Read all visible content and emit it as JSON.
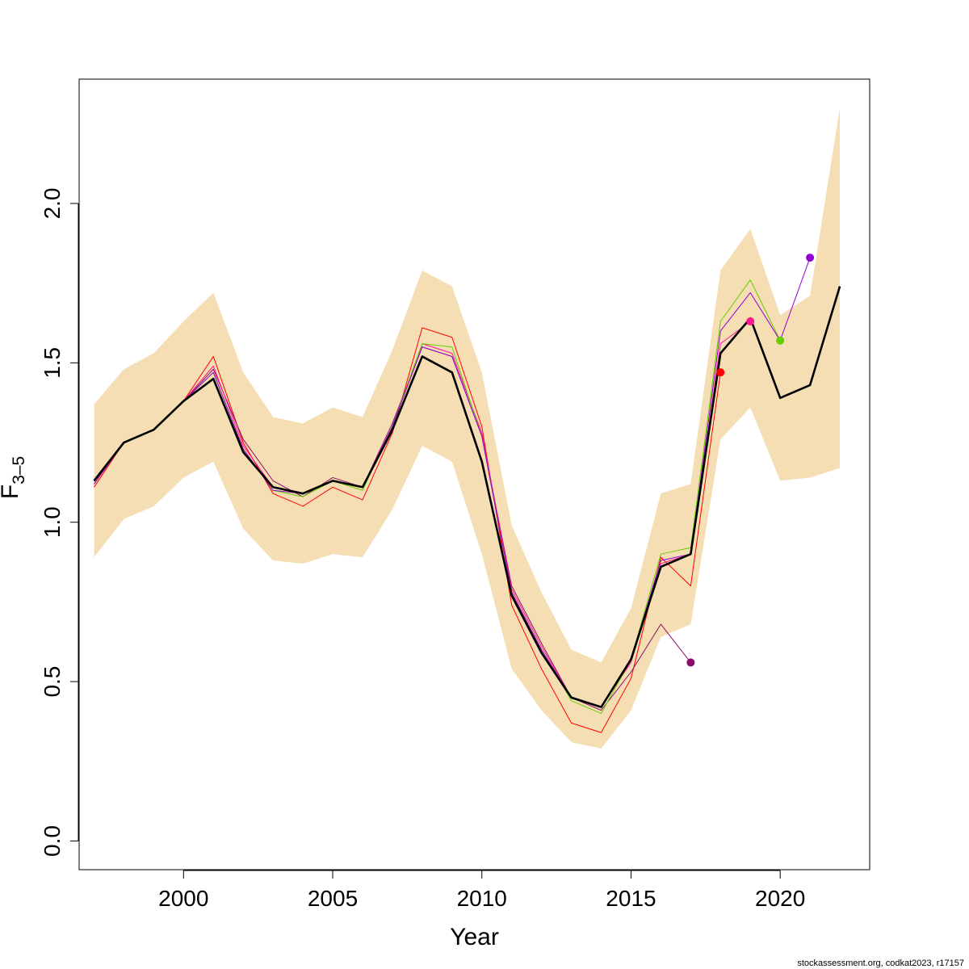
{
  "chart_data": {
    "type": "line",
    "title": "",
    "xlabel": "Year",
    "ylabel_main": "F",
    "ylabel_sub": "3–5",
    "xlim": [
      1996.5,
      2023.0
    ],
    "ylim": [
      -0.09,
      2.39
    ],
    "x_ticks": [
      2000,
      2005,
      2010,
      2015,
      2020
    ],
    "y_ticks": [
      0.0,
      0.5,
      1.0,
      1.5,
      2.0
    ],
    "x_tick_labels": [
      "2000",
      "2005",
      "2010",
      "2015",
      "2020"
    ],
    "y_tick_labels": [
      "0.0",
      "0.5",
      "1.0",
      "1.5",
      "2.0"
    ],
    "grid": false,
    "band": {
      "color": "#f5deb3",
      "x": [
        1997,
        1998,
        1999,
        2000,
        2001,
        2002,
        2003,
        2004,
        2005,
        2006,
        2007,
        2008,
        2009,
        2010,
        2011,
        2012,
        2013,
        2014,
        2015,
        2016,
        2017,
        2018,
        2019,
        2020,
        2021,
        2022
      ],
      "lower": [
        0.89,
        1.01,
        1.05,
        1.14,
        1.19,
        0.98,
        0.88,
        0.87,
        0.9,
        0.89,
        1.04,
        1.24,
        1.19,
        0.9,
        0.54,
        0.41,
        0.31,
        0.29,
        0.41,
        0.64,
        0.68,
        1.26,
        1.36,
        1.13,
        1.14,
        1.17
      ],
      "upper": [
        1.37,
        1.48,
        1.53,
        1.63,
        1.72,
        1.47,
        1.33,
        1.31,
        1.36,
        1.33,
        1.54,
        1.79,
        1.74,
        1.47,
        0.99,
        0.78,
        0.6,
        0.56,
        0.73,
        1.09,
        1.12,
        1.79,
        1.92,
        1.65,
        1.71,
        2.3
      ]
    },
    "series": [
      {
        "color": "#000000",
        "width": 2.6,
        "x": [
          1997,
          1998,
          1999,
          2000,
          2001,
          2002,
          2003,
          2004,
          2005,
          2006,
          2007,
          2008,
          2009,
          2010,
          2011,
          2012,
          2013,
          2014,
          2015,
          2016,
          2017,
          2018,
          2019,
          2020,
          2021,
          2022
        ],
        "y": [
          1.13,
          1.25,
          1.29,
          1.38,
          1.45,
          1.22,
          1.11,
          1.09,
          1.13,
          1.11,
          1.29,
          1.52,
          1.47,
          1.19,
          0.77,
          0.59,
          0.45,
          0.42,
          0.57,
          0.86,
          0.9,
          1.53,
          1.64,
          1.39,
          1.43,
          1.74
        ]
      },
      {
        "color": "#ff0000",
        "width": 1.0,
        "x": [
          1997,
          1998,
          1999,
          2000,
          2001,
          2002,
          2003,
          2004,
          2005,
          2006,
          2007,
          2008,
          2009,
          2010,
          2011,
          2012,
          2013,
          2014,
          2015,
          2016,
          2017,
          2018
        ],
        "y": [
          1.11,
          1.25,
          1.29,
          1.38,
          1.52,
          1.25,
          1.09,
          1.05,
          1.11,
          1.07,
          1.28,
          1.61,
          1.58,
          1.3,
          0.74,
          0.54,
          0.37,
          0.34,
          0.51,
          0.89,
          0.8,
          1.47
        ]
      },
      {
        "color": "#8b0a6e",
        "width": 1.0,
        "x": [
          1997,
          1998,
          1999,
          2000,
          2001,
          2002,
          2003,
          2004,
          2005,
          2006,
          2007,
          2008,
          2009,
          2010,
          2011,
          2012,
          2013,
          2014,
          2015,
          2016,
          2017
        ],
        "y": [
          1.12,
          1.25,
          1.29,
          1.38,
          1.48,
          1.26,
          1.13,
          1.08,
          1.14,
          1.11,
          1.31,
          1.55,
          1.52,
          1.27,
          0.8,
          0.62,
          0.45,
          0.41,
          0.53,
          0.68,
          0.56
        ]
      },
      {
        "color": "#ff1493",
        "width": 1.0,
        "x": [
          1997,
          1998,
          1999,
          2000,
          2001,
          2002,
          2003,
          2004,
          2005,
          2006,
          2007,
          2008,
          2009,
          2010,
          2011,
          2012,
          2013,
          2014,
          2015,
          2016,
          2017,
          2018,
          2019
        ],
        "y": [
          1.12,
          1.25,
          1.29,
          1.38,
          1.49,
          1.24,
          1.11,
          1.09,
          1.13,
          1.11,
          1.3,
          1.56,
          1.53,
          1.28,
          0.79,
          0.61,
          0.45,
          0.42,
          0.56,
          0.87,
          0.9,
          1.56,
          1.63
        ]
      },
      {
        "color": "#66cc00",
        "width": 1.0,
        "x": [
          1997,
          1998,
          1999,
          2000,
          2001,
          2002,
          2003,
          2004,
          2005,
          2006,
          2007,
          2008,
          2009,
          2010,
          2011,
          2012,
          2013,
          2014,
          2015,
          2016,
          2017,
          2018,
          2019,
          2020
        ],
        "y": [
          1.12,
          1.25,
          1.29,
          1.38,
          1.47,
          1.23,
          1.1,
          1.08,
          1.13,
          1.1,
          1.3,
          1.56,
          1.55,
          1.27,
          0.78,
          0.6,
          0.44,
          0.4,
          0.57,
          0.9,
          0.92,
          1.63,
          1.76,
          1.57
        ]
      },
      {
        "color": "#9400d3",
        "width": 1.0,
        "x": [
          1997,
          1998,
          1999,
          2000,
          2001,
          2002,
          2003,
          2004,
          2005,
          2006,
          2007,
          2008,
          2009,
          2010,
          2011,
          2012,
          2013,
          2014,
          2015,
          2016,
          2017,
          2018,
          2019,
          2020,
          2021
        ],
        "y": [
          1.12,
          1.25,
          1.29,
          1.38,
          1.47,
          1.23,
          1.1,
          1.09,
          1.13,
          1.11,
          1.3,
          1.55,
          1.52,
          1.27,
          0.78,
          0.6,
          0.45,
          0.42,
          0.57,
          0.88,
          0.9,
          1.6,
          1.72,
          1.57,
          1.83
        ]
      }
    ],
    "endpoints": [
      {
        "x": 2017,
        "y": 0.56,
        "color": "#8b0a6e"
      },
      {
        "x": 2018,
        "y": 1.47,
        "color": "#ff0000"
      },
      {
        "x": 2019,
        "y": 1.63,
        "color": "#ff1493"
      },
      {
        "x": 2020,
        "y": 1.57,
        "color": "#66cc00"
      },
      {
        "x": 2021,
        "y": 1.83,
        "color": "#9400d3"
      }
    ]
  },
  "credit": "stockassessment.org, codkat2023, r17157"
}
